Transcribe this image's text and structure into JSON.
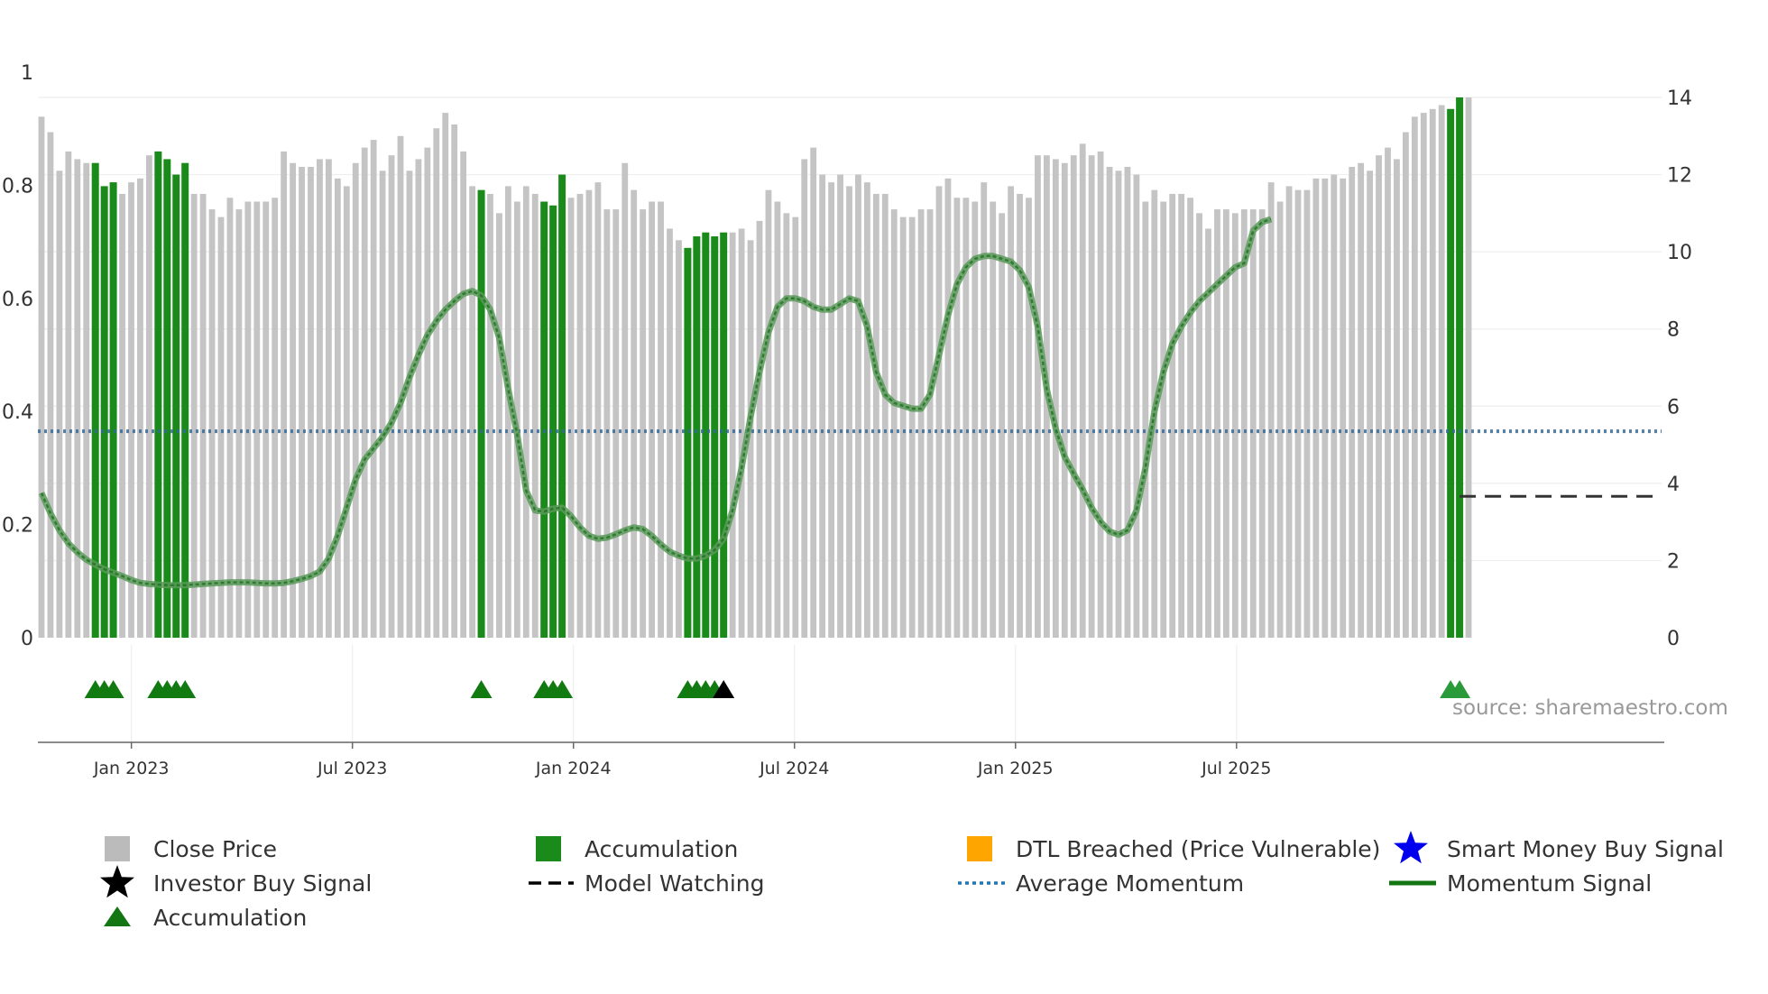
{
  "chart_data": {
    "type": "bar+line",
    "source_label": "source: sharemaestro.com",
    "left_axis": {
      "ylim": [
        0,
        1
      ],
      "ticks": [
        "0",
        "0.2",
        "0.4",
        "0.6",
        "0.8",
        "1"
      ]
    },
    "right_axis": {
      "ylim": [
        0,
        14
      ],
      "ticks": [
        "0",
        "2",
        "4",
        "6",
        "8",
        "10",
        "12",
        "14"
      ]
    },
    "x_ticks": [
      "Jan 2023",
      "Jul 2023",
      "Jan 2024",
      "Jul 2024",
      "Jan 2025",
      "Jul 2025"
    ],
    "period": {
      "start_week_offset": -11,
      "end_week_offset": 180,
      "week_offset_unit": "weeks from Jan 2023"
    },
    "close_price": [
      13.5,
      13.1,
      12.1,
      12.6,
      12.4,
      12.3,
      12.3,
      11.7,
      11.8,
      11.5,
      11.8,
      11.9,
      12.5,
      12.6,
      12.4,
      12.0,
      12.3,
      11.5,
      11.5,
      11.1,
      10.9,
      11.4,
      11.1,
      11.3,
      11.3,
      11.3,
      11.4,
      12.6,
      12.3,
      12.2,
      12.2,
      12.4,
      12.4,
      11.9,
      11.7,
      12.3,
      12.7,
      12.9,
      12.1,
      12.5,
      13.0,
      12.1,
      12.4,
      12.7,
      13.2,
      13.6,
      13.3,
      12.6,
      11.7,
      11.6,
      11.5,
      11.0,
      11.7,
      11.3,
      11.7,
      11.5,
      11.3,
      11.2,
      12.0,
      11.4,
      11.5,
      11.6,
      11.8,
      11.1,
      11.1,
      12.3,
      11.6,
      11.1,
      11.3,
      11.3,
      10.6,
      10.3,
      10.1,
      10.4,
      10.5,
      10.4,
      10.5,
      10.5,
      10.6,
      10.3,
      10.8,
      11.6,
      11.3,
      11.0,
      10.9,
      12.4,
      12.7,
      12.0,
      11.8,
      12.0,
      11.7,
      12.0,
      11.8,
      11.5,
      11.5,
      11.1,
      10.9,
      10.9,
      11.1,
      11.1,
      11.7,
      11.9,
      11.4,
      11.4,
      11.3,
      11.8,
      11.3,
      11.0,
      11.7,
      11.5,
      11.4,
      12.5,
      12.5,
      12.4,
      12.3,
      12.5,
      12.8,
      12.5,
      12.6,
      12.2,
      12.1,
      12.2,
      12.0,
      11.3,
      11.6,
      11.3,
      11.5,
      11.5,
      11.4,
      11.0,
      10.6,
      11.1,
      11.1,
      11.0,
      11.1,
      11.1,
      11.1,
      11.8,
      11.3,
      11.7,
      11.6,
      11.6,
      11.9,
      11.9,
      12.0,
      11.9,
      12.2,
      12.3,
      12.1,
      12.5,
      12.7,
      12.4,
      13.1,
      13.5,
      13.6,
      13.7,
      13.8,
      13.7,
      14.0,
      14.0
    ],
    "accumulation_weeks": [
      6,
      7,
      8,
      13,
      14,
      15,
      16,
      49,
      56,
      57,
      58,
      72,
      73,
      74,
      75,
      76,
      157,
      158
    ],
    "accumulation_triangles": [
      6,
      7,
      8,
      13,
      14,
      15,
      16,
      49,
      56,
      57,
      58,
      72,
      73,
      74,
      75
    ],
    "investor_buy_signals": [
      76
    ],
    "momentum_signal": [
      0.256,
      0.22,
      0.19,
      0.167,
      0.151,
      0.138,
      0.129,
      0.121,
      0.115,
      0.109,
      0.102,
      0.097,
      0.095,
      0.094,
      0.093,
      0.093,
      0.093,
      0.094,
      0.095,
      0.096,
      0.097,
      0.098,
      0.098,
      0.098,
      0.097,
      0.096,
      0.096,
      0.097,
      0.1,
      0.104,
      0.109,
      0.117,
      0.14,
      0.18,
      0.23,
      0.28,
      0.315,
      0.335,
      0.355,
      0.38,
      0.415,
      0.46,
      0.5,
      0.535,
      0.56,
      0.58,
      0.595,
      0.608,
      0.613,
      0.605,
      0.58,
      0.53,
      0.44,
      0.36,
      0.26,
      0.225,
      0.223,
      0.228,
      0.23,
      0.215,
      0.195,
      0.18,
      0.175,
      0.177,
      0.183,
      0.19,
      0.195,
      0.192,
      0.18,
      0.165,
      0.152,
      0.145,
      0.14,
      0.14,
      0.145,
      0.155,
      0.175,
      0.225,
      0.3,
      0.39,
      0.47,
      0.54,
      0.585,
      0.6,
      0.6,
      0.595,
      0.585,
      0.58,
      0.58,
      0.59,
      0.6,
      0.595,
      0.55,
      0.47,
      0.43,
      0.415,
      0.41,
      0.405,
      0.405,
      0.43,
      0.5,
      0.57,
      0.625,
      0.655,
      0.67,
      0.675,
      0.675,
      0.67,
      0.665,
      0.65,
      0.62,
      0.55,
      0.44,
      0.37,
      0.32,
      0.29,
      0.262,
      0.23,
      0.205,
      0.188,
      0.182,
      0.19,
      0.225,
      0.3,
      0.4,
      0.47,
      0.52,
      0.55,
      0.575,
      0.595,
      0.61,
      0.625,
      0.64,
      0.655,
      0.662,
      0.72,
      0.735,
      0.74
    ],
    "average_momentum": 0.365,
    "model_watching": {
      "start_week": 158,
      "end_week": 180,
      "value": 0.25
    },
    "legend": [
      {
        "label": "Close Price",
        "kind": "square",
        "color": "#bbbbbb"
      },
      {
        "label": "Accumulation",
        "kind": "square",
        "color": "#1a8a1a"
      },
      {
        "label": "DTL Breached (Price Vulnerable)",
        "kind": "square",
        "color": "#ffa500"
      },
      {
        "label": "Smart Money Buy Signal",
        "kind": "star",
        "color": "#0000ee"
      },
      {
        "label": "Investor Buy Signal",
        "kind": "star",
        "color": "#000000"
      },
      {
        "label": "Model Watching",
        "kind": "dash",
        "color": "#000000"
      },
      {
        "label": "Average Momentum",
        "kind": "dot",
        "color": "#1f77b4"
      },
      {
        "label": "Momentum Signal",
        "kind": "line",
        "color": "#137613"
      },
      {
        "label": "Accumulation",
        "kind": "triangle",
        "color": "#137613"
      }
    ]
  }
}
